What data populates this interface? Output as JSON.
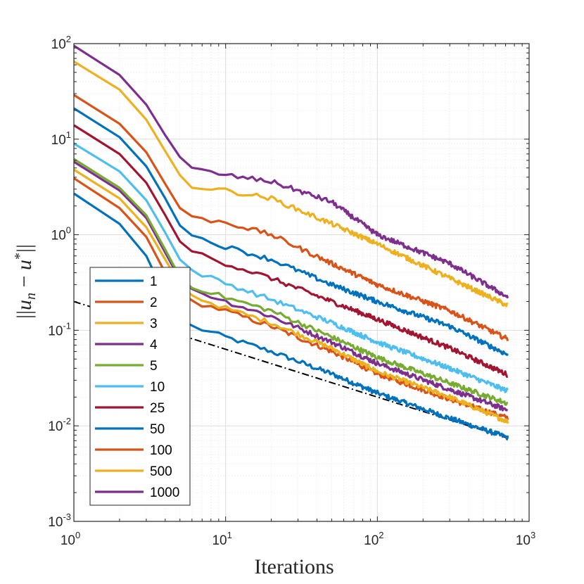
{
  "chart_data": {
    "type": "line",
    "xscale": "log",
    "yscale": "log",
    "xlim": [
      1,
      1000
    ],
    "ylim": [
      0.001,
      100
    ],
    "xlabel": "Iterations",
    "ylabel": "||u_n − u*||",
    "ylabel_parts": {
      "bars_open": "||",
      "u": "u",
      "n": "n",
      "minus": " − ",
      "u2": "u",
      "star": "*",
      "bars_close": "||"
    },
    "x_ticks": [
      {
        "base": "10",
        "exp": "0",
        "value": 1
      },
      {
        "base": "10",
        "exp": "1",
        "value": 10
      },
      {
        "base": "10",
        "exp": "2",
        "value": 100
      },
      {
        "base": "10",
        "exp": "3",
        "value": 1000
      }
    ],
    "y_ticks": [
      {
        "base": "10",
        "exp": "-3",
        "value": 0.001
      },
      {
        "base": "10",
        "exp": "-2",
        "value": 0.01
      },
      {
        "base": "10",
        "exp": "-1",
        "value": 0.1
      },
      {
        "base": "10",
        "exp": "0",
        "value": 1
      },
      {
        "base": "10",
        "exp": "1",
        "value": 10
      },
      {
        "base": "10",
        "exp": "2",
        "value": 100
      }
    ],
    "grid": true,
    "legend_position": "left",
    "reference_line": {
      "style": "dash-dot",
      "color": "#000000",
      "points": [
        [
          1,
          0.2
        ],
        [
          730,
          0.0074
        ]
      ]
    },
    "series": [
      {
        "name": "1",
        "color": "#0072BD",
        "points": [
          [
            1,
            2.7
          ],
          [
            2,
            1.3
          ],
          [
            3,
            0.6
          ],
          [
            4,
            0.23
          ],
          [
            5,
            0.13
          ],
          [
            6,
            0.11
          ],
          [
            10,
            0.085
          ],
          [
            20,
            0.06
          ],
          [
            50,
            0.035
          ],
          [
            100,
            0.022
          ],
          [
            300,
            0.012
          ],
          [
            730,
            0.0075
          ]
        ]
      },
      {
        "name": "2",
        "color": "#D95319",
        "points": [
          [
            1,
            3.9
          ],
          [
            2,
            1.9
          ],
          [
            3,
            0.95
          ],
          [
            4,
            0.4
          ],
          [
            5,
            0.25
          ],
          [
            6,
            0.2
          ],
          [
            10,
            0.16
          ],
          [
            20,
            0.11
          ],
          [
            50,
            0.06
          ],
          [
            100,
            0.035
          ],
          [
            300,
            0.019
          ],
          [
            730,
            0.012
          ]
        ]
      },
      {
        "name": "3",
        "color": "#EDB120",
        "points": [
          [
            1,
            4.8
          ],
          [
            2,
            2.4
          ],
          [
            3,
            1.2
          ],
          [
            4,
            0.55
          ],
          [
            5,
            0.3
          ],
          [
            6,
            0.23
          ],
          [
            10,
            0.17
          ],
          [
            20,
            0.12
          ],
          [
            50,
            0.065
          ],
          [
            100,
            0.037
          ],
          [
            300,
            0.02
          ],
          [
            730,
            0.011
          ]
        ]
      },
      {
        "name": "4",
        "color": "#7E2F8E",
        "points": [
          [
            1,
            5.8
          ],
          [
            2,
            2.9
          ],
          [
            3,
            1.5
          ],
          [
            4,
            0.65
          ],
          [
            5,
            0.34
          ],
          [
            6,
            0.27
          ],
          [
            10,
            0.2
          ],
          [
            20,
            0.14
          ],
          [
            50,
            0.075
          ],
          [
            100,
            0.045
          ],
          [
            300,
            0.024
          ],
          [
            730,
            0.0145
          ]
        ]
      },
      {
        "name": "5",
        "color": "#77AC30",
        "points": [
          [
            1,
            6.2
          ],
          [
            2,
            3.1
          ],
          [
            3,
            1.6
          ],
          [
            4,
            0.7
          ],
          [
            5,
            0.36
          ],
          [
            6,
            0.29
          ],
          [
            10,
            0.22
          ],
          [
            20,
            0.16
          ],
          [
            50,
            0.085
          ],
          [
            100,
            0.052
          ],
          [
            300,
            0.028
          ],
          [
            730,
            0.017
          ]
        ]
      },
      {
        "name": "10",
        "color": "#4DBEEE",
        "points": [
          [
            1,
            9
          ],
          [
            2,
            4.6
          ],
          [
            3,
            2.3
          ],
          [
            4,
            1.05
          ],
          [
            5,
            0.55
          ],
          [
            6,
            0.42
          ],
          [
            10,
            0.31
          ],
          [
            20,
            0.21
          ],
          [
            50,
            0.12
          ],
          [
            100,
            0.075
          ],
          [
            300,
            0.04
          ],
          [
            730,
            0.023
          ]
        ]
      },
      {
        "name": "25",
        "color": "#A2142F",
        "points": [
          [
            1,
            14
          ],
          [
            2,
            7
          ],
          [
            3,
            3.5
          ],
          [
            4,
            1.6
          ],
          [
            5,
            0.85
          ],
          [
            6,
            0.68
          ],
          [
            10,
            0.5
          ],
          [
            20,
            0.35
          ],
          [
            50,
            0.2
          ],
          [
            100,
            0.13
          ],
          [
            300,
            0.065
          ],
          [
            730,
            0.034
          ]
        ]
      },
      {
        "name": "50",
        "color": "#0072BD",
        "points": [
          [
            1,
            21
          ],
          [
            2,
            10.5
          ],
          [
            3,
            5.2
          ],
          [
            4,
            2.4
          ],
          [
            5,
            1.25
          ],
          [
            6,
            0.97
          ],
          [
            10,
            0.75
          ],
          [
            20,
            0.55
          ],
          [
            50,
            0.3
          ],
          [
            100,
            0.2
          ],
          [
            300,
            0.11
          ],
          [
            730,
            0.055
          ]
        ]
      },
      {
        "name": "100",
        "color": "#D95319",
        "points": [
          [
            1,
            29
          ],
          [
            2,
            14.5
          ],
          [
            3,
            7.3
          ],
          [
            4,
            3.4
          ],
          [
            5,
            1.9
          ],
          [
            6,
            1.5
          ],
          [
            10,
            1.35
          ],
          [
            20,
            1.0
          ],
          [
            50,
            0.5
          ],
          [
            100,
            0.3
          ],
          [
            300,
            0.16
          ],
          [
            730,
            0.08
          ]
        ]
      },
      {
        "name": "500",
        "color": "#EDB120",
        "points": [
          [
            1,
            65
          ],
          [
            2,
            33
          ],
          [
            3,
            16
          ],
          [
            4,
            7.5
          ],
          [
            5,
            4.2
          ],
          [
            6,
            3.2
          ],
          [
            10,
            2.9
          ],
          [
            20,
            2.4
          ],
          [
            50,
            1.3
          ],
          [
            100,
            0.8
          ],
          [
            300,
            0.35
          ],
          [
            730,
            0.18
          ]
        ]
      },
      {
        "name": "1000",
        "color": "#7E2F8E",
        "points": [
          [
            1,
            95
          ],
          [
            2,
            47
          ],
          [
            3,
            23
          ],
          [
            4,
            11
          ],
          [
            5,
            6.5
          ],
          [
            6,
            4.9
          ],
          [
            10,
            4.2
          ],
          [
            20,
            3.6
          ],
          [
            50,
            2.2
          ],
          [
            100,
            1.0
          ],
          [
            300,
            0.5
          ],
          [
            730,
            0.22
          ]
        ]
      }
    ]
  }
}
